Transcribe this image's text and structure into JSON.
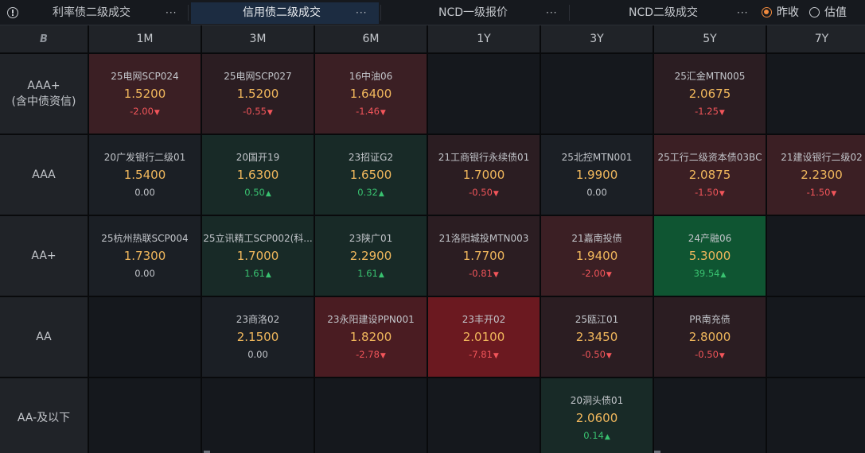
{
  "tabs": [
    {
      "label": "利率债二级成交",
      "active": false
    },
    {
      "label": "信用债二级成交",
      "active": true
    },
    {
      "label": "NCD一级报价",
      "active": false
    },
    {
      "label": "NCD二级成交",
      "active": false
    }
  ],
  "more_glyph": "···",
  "radios": [
    {
      "label": "昨收",
      "checked": true
    },
    {
      "label": "估值",
      "checked": false
    }
  ],
  "corner_icon": "B",
  "columns": [
    "1M",
    "3M",
    "6M",
    "1Y",
    "3Y",
    "5Y",
    "7Y"
  ],
  "rows": [
    {
      "label_lines": [
        "AAA+",
        "(含中债资信)"
      ],
      "cells": [
        {
          "name": "25电网SCP024",
          "yield": "1.5200",
          "change": "-2.00",
          "dir": "down",
          "tone": "red-2"
        },
        {
          "name": "25电网SCP027",
          "yield": "1.5200",
          "change": "-0.55",
          "dir": "down",
          "tone": "red-1"
        },
        {
          "name": "16中油06",
          "yield": "1.6400",
          "change": "-1.46",
          "dir": "down",
          "tone": "red-2"
        },
        null,
        null,
        {
          "name": "25汇金MTN005",
          "yield": "2.0675",
          "change": "-1.25",
          "dir": "down",
          "tone": "red-1"
        },
        null
      ]
    },
    {
      "label_lines": [
        "AAA"
      ],
      "cells": [
        {
          "name": "20广发银行二级01",
          "yield": "1.5400",
          "change": "0.00",
          "dir": "flat",
          "tone": "neutral"
        },
        {
          "name": "20国开19",
          "yield": "1.6300",
          "change": "0.50",
          "dir": "up",
          "tone": "green-1"
        },
        {
          "name": "23招证G2",
          "yield": "1.6500",
          "change": "0.32",
          "dir": "up",
          "tone": "green-1"
        },
        {
          "name": "21工商银行永续债01",
          "yield": "1.7000",
          "change": "-0.50",
          "dir": "down",
          "tone": "red-1"
        },
        {
          "name": "25北控MTN001",
          "yield": "1.9900",
          "change": "0.00",
          "dir": "flat",
          "tone": "neutral"
        },
        {
          "name": "25工行二级资本债03BC",
          "yield": "2.0875",
          "change": "-1.50",
          "dir": "down",
          "tone": "red-2"
        },
        {
          "name": "21建设银行二级02",
          "yield": "2.2300",
          "change": "-1.50",
          "dir": "down",
          "tone": "red-2"
        }
      ]
    },
    {
      "label_lines": [
        "AA+"
      ],
      "cells": [
        {
          "name": "25杭州热联SCP004",
          "yield": "1.7300",
          "change": "0.00",
          "dir": "flat",
          "tone": "neutral"
        },
        {
          "name": "25立讯精工SCP002(科...",
          "yield": "1.7000",
          "change": "1.61",
          "dir": "up",
          "tone": "green-1"
        },
        {
          "name": "23陕广01",
          "yield": "2.2900",
          "change": "1.61",
          "dir": "up",
          "tone": "green-1"
        },
        {
          "name": "21洛阳城投MTN003",
          "yield": "1.7700",
          "change": "-0.81",
          "dir": "down",
          "tone": "red-1"
        },
        {
          "name": "21嘉南投债",
          "yield": "1.9400",
          "change": "-2.00",
          "dir": "down",
          "tone": "red-2"
        },
        {
          "name": "24产融06",
          "yield": "5.3000",
          "change": "39.54",
          "dir": "up",
          "tone": "green-4"
        },
        null
      ]
    },
    {
      "label_lines": [
        "AA"
      ],
      "cells": [
        null,
        {
          "name": "23商洛02",
          "yield": "2.1500",
          "change": "0.00",
          "dir": "flat",
          "tone": "neutral"
        },
        {
          "name": "23永阳建设PPN001",
          "yield": "1.8200",
          "change": "-2.78",
          "dir": "down",
          "tone": "red-3"
        },
        {
          "name": "23丰开02",
          "yield": "2.0100",
          "change": "-7.81",
          "dir": "down",
          "tone": "red-4"
        },
        {
          "name": "25瓯江01",
          "yield": "2.3450",
          "change": "-0.50",
          "dir": "down",
          "tone": "red-1"
        },
        {
          "name": "PR南充债",
          "yield": "2.8000",
          "change": "-0.50",
          "dir": "down",
          "tone": "red-1"
        },
        null
      ]
    },
    {
      "label_lines": [
        "AA-及以下"
      ],
      "cells": [
        null,
        null,
        null,
        null,
        {
          "name": "20洞头债01",
          "yield": "2.0600",
          "change": "0.14",
          "dir": "up",
          "tone": "green-1"
        },
        null,
        null
      ]
    }
  ]
}
